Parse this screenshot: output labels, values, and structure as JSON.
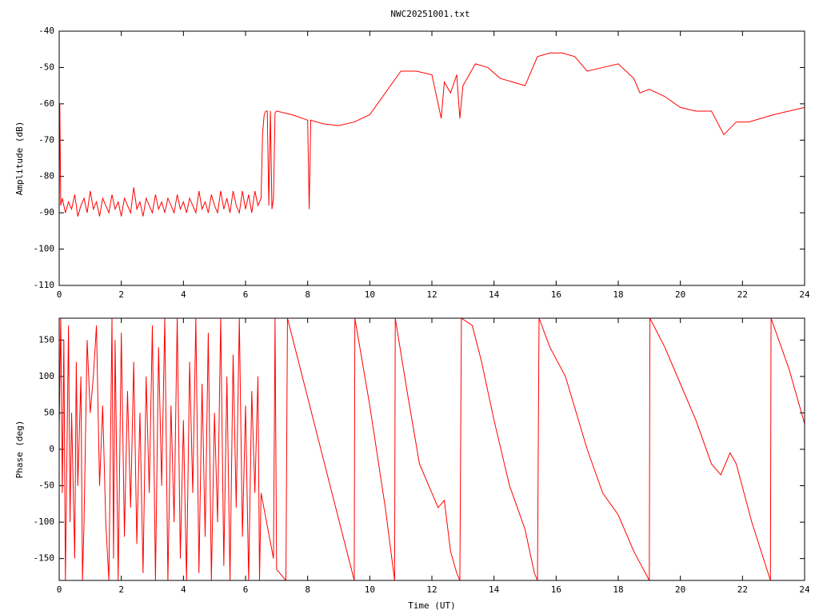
{
  "chart_data": [
    {
      "type": "line",
      "title": "NWC20251001.txt",
      "ylabel": "Amplitude (dB)",
      "color": "#ff0000",
      "xlim": [
        0,
        24
      ],
      "xticks": [
        0,
        2,
        4,
        6,
        8,
        10,
        12,
        14,
        16,
        18,
        20,
        22,
        24
      ],
      "ylim": [
        -110,
        -40
      ],
      "yticks": [
        -110,
        -100,
        -90,
        -80,
        -70,
        -60,
        -50,
        -40
      ],
      "x": [
        0,
        0.02,
        0.05,
        0.1,
        0.2,
        0.3,
        0.4,
        0.5,
        0.6,
        0.7,
        0.8,
        0.9,
        1.0,
        1.1,
        1.2,
        1.3,
        1.4,
        1.5,
        1.6,
        1.7,
        1.8,
        1.9,
        2.0,
        2.1,
        2.2,
        2.3,
        2.4,
        2.5,
        2.6,
        2.7,
        2.8,
        2.9,
        3.0,
        3.1,
        3.2,
        3.3,
        3.4,
        3.5,
        3.6,
        3.7,
        3.8,
        3.9,
        4.0,
        4.1,
        4.2,
        4.3,
        4.4,
        4.5,
        4.6,
        4.7,
        4.8,
        4.9,
        5.0,
        5.1,
        5.2,
        5.3,
        5.4,
        5.5,
        5.6,
        5.7,
        5.8,
        5.9,
        6.0,
        6.1,
        6.2,
        6.3,
        6.4,
        6.5,
        6.55,
        6.6,
        6.65,
        6.7,
        6.75,
        6.8,
        6.85,
        6.9,
        6.95,
        7.0,
        7.5,
        8.0,
        8.05,
        8.1,
        8.5,
        9.0,
        9.5,
        10.0,
        10.5,
        11.0,
        11.5,
        12.0,
        12.3,
        12.4,
        12.6,
        12.8,
        12.9,
        13.0,
        13.4,
        13.8,
        14.2,
        14.6,
        15.0,
        15.4,
        15.8,
        16.2,
        16.6,
        17.0,
        17.5,
        18.0,
        18.5,
        18.7,
        19.0,
        19.5,
        20.0,
        20.5,
        21.0,
        21.4,
        21.8,
        22.2,
        23.0,
        24.0
      ],
      "values": [
        -88,
        -60,
        -88,
        -86,
        -90,
        -87,
        -89,
        -85,
        -91,
        -88,
        -86,
        -90,
        -84,
        -89,
        -87,
        -91,
        -86,
        -88,
        -90,
        -85,
        -89,
        -87,
        -91,
        -86,
        -88,
        -90,
        -83,
        -89,
        -87,
        -91,
        -86,
        -88,
        -90,
        -85,
        -89,
        -87,
        -90,
        -86,
        -88,
        -90,
        -85,
        -89,
        -87,
        -90,
        -86,
        -88,
        -90,
        -84,
        -89,
        -87,
        -90,
        -85,
        -88,
        -90,
        -84,
        -89,
        -86,
        -90,
        -84,
        -88,
        -90,
        -84,
        -89,
        -85,
        -90,
        -84,
        -88,
        -86,
        -68,
        -63,
        -62,
        -62,
        -88,
        -62,
        -89,
        -86,
        -62.5,
        -62,
        -63,
        -64.5,
        -89,
        -64.5,
        -65.5,
        -66,
        -65,
        -63,
        -57,
        -51,
        -51,
        -52,
        -64,
        -54,
        -57,
        -52,
        -64,
        -55,
        -49,
        -50,
        -53,
        -54,
        -55,
        -47,
        -46,
        -46,
        -47,
        -51,
        -50,
        -49,
        -53,
        -57,
        -56,
        -58,
        -61,
        -62,
        -62,
        -68.5,
        -65,
        -65,
        -63,
        -61
      ]
    },
    {
      "type": "line",
      "ylabel": "Phase (deg)",
      "xlabel": "Time (UT)",
      "color": "#ff0000",
      "xlim": [
        0,
        24
      ],
      "xticks": [
        0,
        2,
        4,
        6,
        8,
        10,
        12,
        14,
        16,
        18,
        20,
        22,
        24
      ],
      "ylim": [
        -180,
        180
      ],
      "yticks": [
        -150,
        -100,
        -50,
        0,
        50,
        100,
        150
      ],
      "x": [
        0,
        0.05,
        0.1,
        0.15,
        0.2,
        0.3,
        0.35,
        0.4,
        0.5,
        0.55,
        0.6,
        0.7,
        0.75,
        0.8,
        0.9,
        1.0,
        1.1,
        1.2,
        1.3,
        1.4,
        1.5,
        1.6,
        1.7,
        1.75,
        1.8,
        1.9,
        2.0,
        2.1,
        2.2,
        2.3,
        2.4,
        2.5,
        2.6,
        2.7,
        2.8,
        2.9,
        3.0,
        3.1,
        3.2,
        3.3,
        3.4,
        3.5,
        3.6,
        3.7,
        3.8,
        3.9,
        4.0,
        4.1,
        4.2,
        4.3,
        4.4,
        4.5,
        4.6,
        4.7,
        4.8,
        4.9,
        5.0,
        5.1,
        5.2,
        5.3,
        5.4,
        5.5,
        5.6,
        5.7,
        5.8,
        5.9,
        6.0,
        6.1,
        6.2,
        6.3,
        6.4,
        6.45,
        6.5,
        6.9,
        6.95,
        7.0,
        7.3,
        7.35,
        9.5,
        9.52,
        10.0,
        10.5,
        10.8,
        10.82,
        11.2,
        11.6,
        12.0,
        12.2,
        12.4,
        12.6,
        12.8,
        12.9,
        12.95,
        13.3,
        13.6,
        14.0,
        14.5,
        15.0,
        15.3,
        15.4,
        15.45,
        15.8,
        16.3,
        17.0,
        17.5,
        18.0,
        18.5,
        19.0,
        19.02,
        19.5,
        20.0,
        20.5,
        21.0,
        21.3,
        21.6,
        21.8,
        22.3,
        22.9,
        22.92,
        23.5,
        24.0
      ],
      "values": [
        30,
        180,
        -60,
        150,
        -180,
        170,
        -100,
        50,
        -150,
        120,
        -50,
        100,
        -180,
        -100,
        150,
        50,
        100,
        170,
        -50,
        60,
        -100,
        -180,
        180,
        -150,
        150,
        -180,
        160,
        -120,
        80,
        -80,
        120,
        -130,
        50,
        -170,
        100,
        -60,
        170,
        -180,
        140,
        -50,
        180,
        -180,
        60,
        -100,
        180,
        -150,
        40,
        -180,
        120,
        -60,
        180,
        -170,
        90,
        -120,
        160,
        -180,
        50,
        -100,
        180,
        -160,
        100,
        -180,
        130,
        -80,
        180,
        -120,
        60,
        -180,
        80,
        -60,
        100,
        -180,
        -60,
        -150,
        180,
        -165,
        -180,
        180,
        -180,
        180,
        60,
        -80,
        -180,
        180,
        80,
        -20,
        -60,
        -80,
        -70,
        -140,
        -170,
        -180,
        180,
        170,
        120,
        40,
        -50,
        -110,
        -170,
        -180,
        180,
        140,
        100,
        0,
        -60,
        -90,
        -140,
        -180,
        180,
        140,
        90,
        40,
        -20,
        -35,
        -5,
        -20,
        -100,
        -180,
        180,
        110,
        35
      ]
    }
  ]
}
